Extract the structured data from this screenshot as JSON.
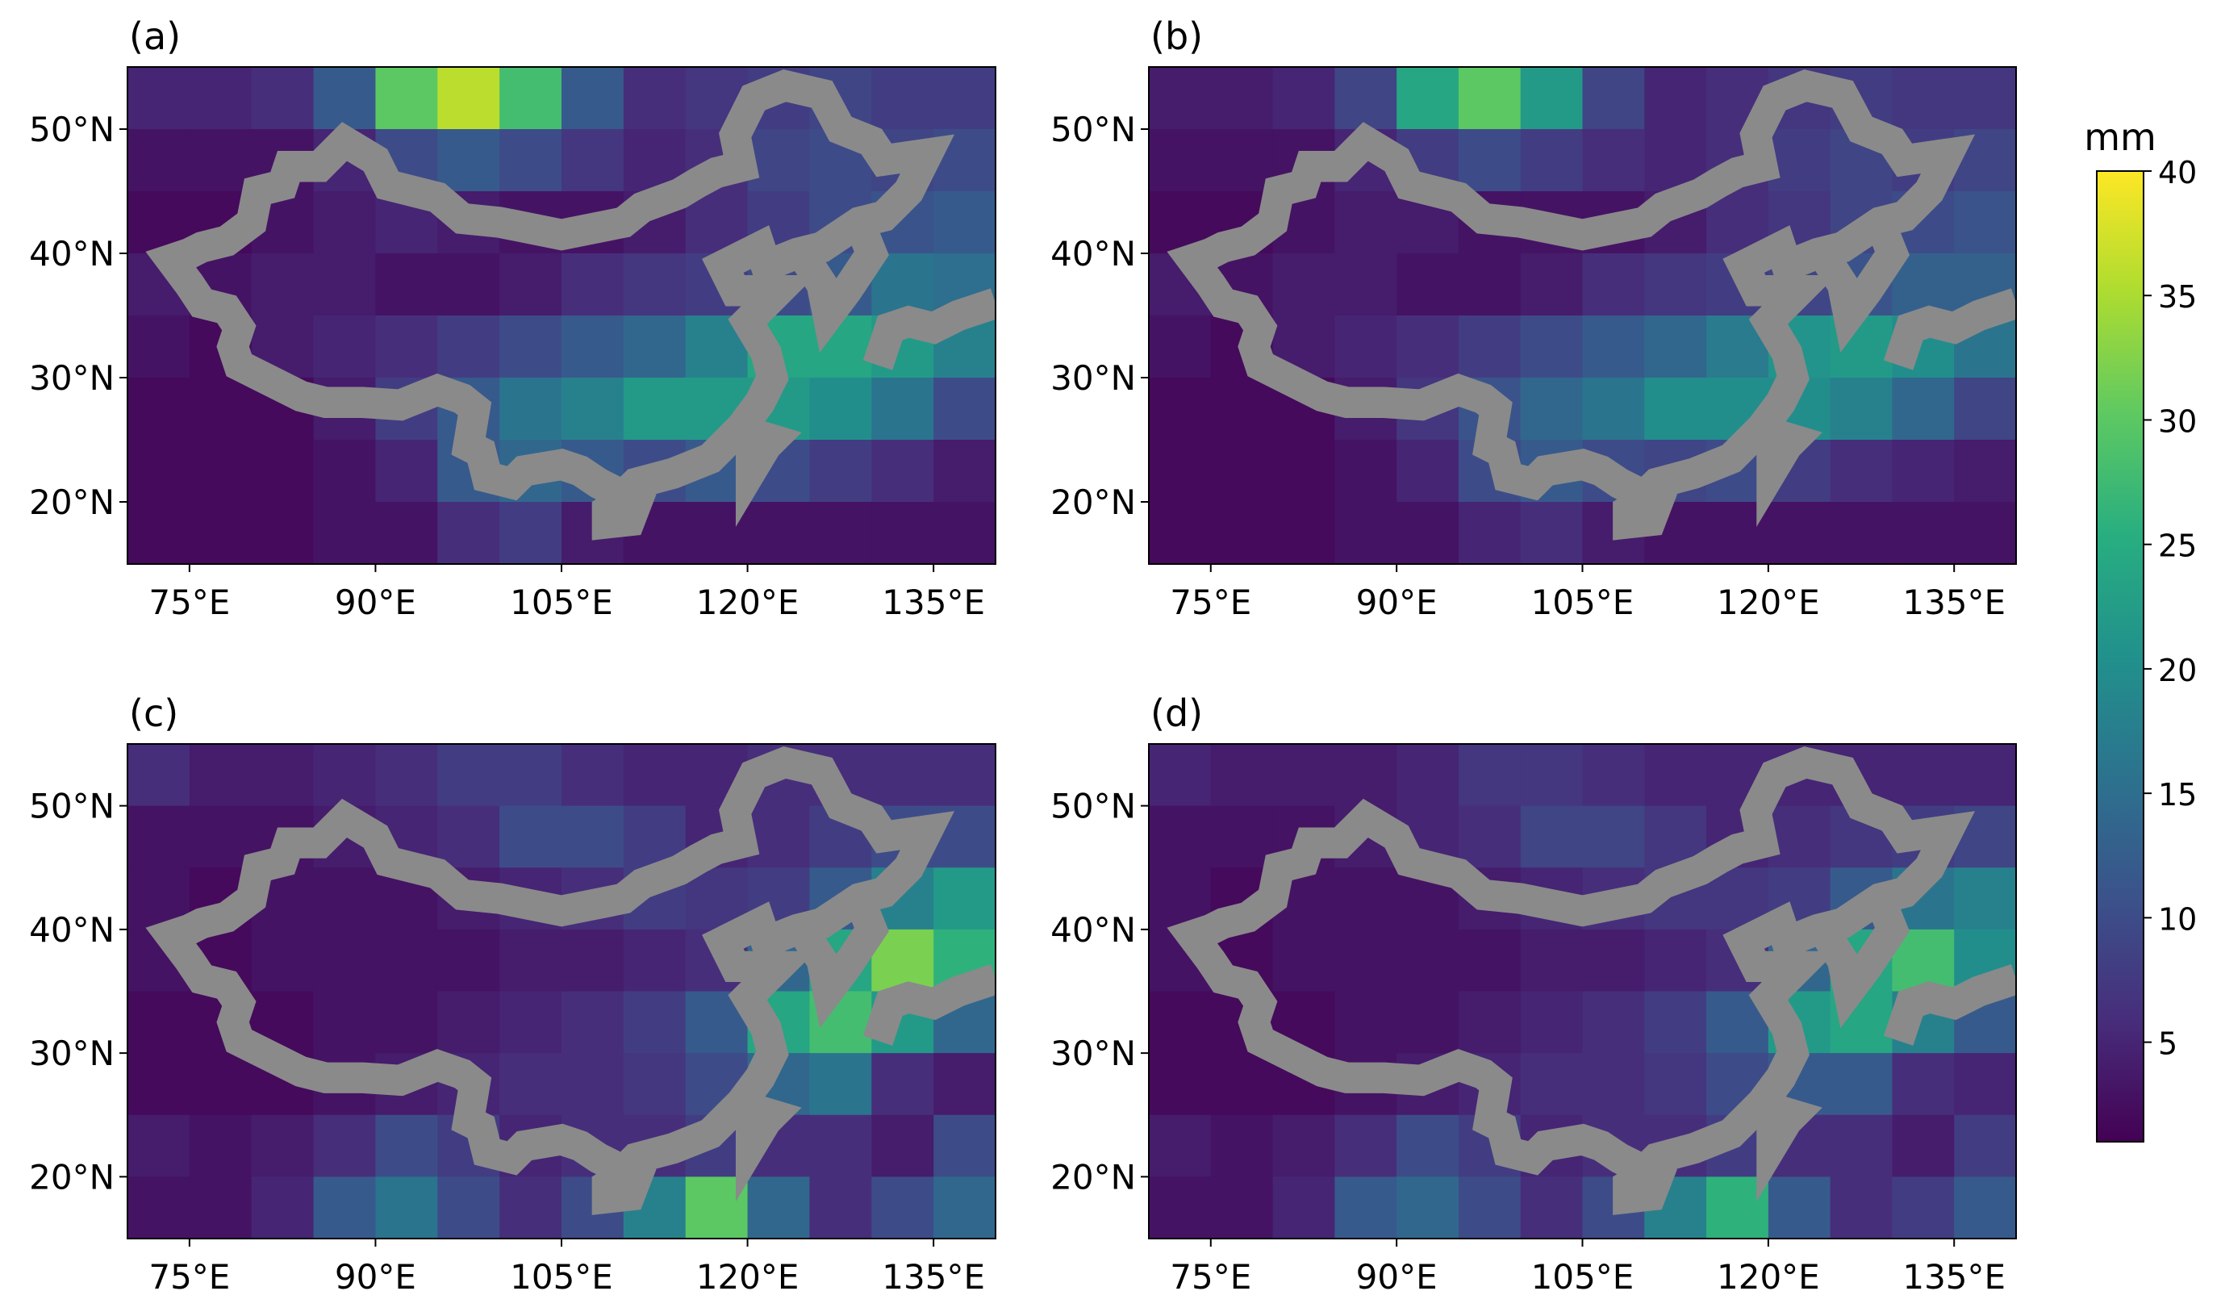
{
  "chart_data": [
    {
      "type": "heatmap",
      "title": "(a)",
      "x": [
        72.5,
        77.5,
        82.5,
        87.5,
        92.5,
        97.5,
        102.5,
        107.5,
        112.5,
        117.5,
        122.5,
        127.5,
        132.5,
        137.5
      ],
      "y": [
        52.5,
        47.5,
        42.5,
        37.5,
        32.5,
        27.5,
        22.5,
        17.5
      ],
      "z": [
        [
          5,
          5,
          6,
          12,
          30,
          36,
          28,
          12,
          6,
          7,
          8,
          9,
          8,
          8
        ],
        [
          3,
          3,
          3,
          5,
          10,
          12,
          10,
          7,
          5,
          6,
          9,
          10,
          9,
          10
        ],
        [
          2,
          2,
          3,
          4,
          5,
          4,
          3,
          3,
          4,
          6,
          8,
          10,
          11,
          12
        ],
        [
          4,
          3,
          4,
          4,
          3,
          3,
          4,
          6,
          7,
          8,
          10,
          12,
          16,
          15
        ],
        [
          3,
          2,
          4,
          5,
          6,
          8,
          10,
          12,
          14,
          18,
          24,
          24,
          22,
          18
        ],
        [
          2,
          2,
          2,
          4,
          8,
          12,
          16,
          18,
          22,
          22,
          22,
          20,
          16,
          10
        ],
        [
          2,
          2,
          2,
          3,
          5,
          12,
          14,
          12,
          10,
          12,
          10,
          8,
          6,
          4
        ],
        [
          2,
          2,
          2,
          3,
          3,
          6,
          8,
          4,
          3,
          3,
          3,
          3,
          3,
          3
        ]
      ],
      "xlim": [
        70,
        140
      ],
      "ylim": [
        15,
        55
      ],
      "xticks": [
        {
          "value": 75,
          "label": "75°E"
        },
        {
          "value": 90,
          "label": "90°E"
        },
        {
          "value": 105,
          "label": "105°E"
        },
        {
          "value": 120,
          "label": "120°E"
        },
        {
          "value": 135,
          "label": "135°E"
        }
      ],
      "yticks": [
        {
          "value": 20,
          "label": "20°N"
        },
        {
          "value": 30,
          "label": "30°N"
        },
        {
          "value": 40,
          "label": "40°N"
        },
        {
          "value": 50,
          "label": "50°N"
        }
      ]
    },
    {
      "type": "heatmap",
      "title": "(b)",
      "x": [
        72.5,
        77.5,
        82.5,
        87.5,
        92.5,
        97.5,
        102.5,
        107.5,
        112.5,
        117.5,
        122.5,
        127.5,
        132.5,
        137.5
      ],
      "y": [
        52.5,
        47.5,
        42.5,
        37.5,
        32.5,
        27.5,
        22.5,
        17.5
      ],
      "z": [
        [
          4,
          4,
          5,
          9,
          24,
          30,
          22,
          9,
          5,
          6,
          7,
          8,
          7,
          7
        ],
        [
          3,
          3,
          3,
          5,
          8,
          10,
          8,
          6,
          5,
          6,
          8,
          9,
          8,
          9
        ],
        [
          2,
          2,
          3,
          4,
          4,
          3,
          3,
          3,
          4,
          6,
          7,
          9,
          10,
          11
        ],
        [
          4,
          3,
          4,
          4,
          3,
          3,
          4,
          6,
          7,
          8,
          9,
          11,
          13,
          13
        ],
        [
          3,
          2,
          4,
          5,
          6,
          8,
          10,
          12,
          14,
          17,
          21,
          22,
          20,
          16
        ],
        [
          2,
          2,
          2,
          4,
          7,
          11,
          14,
          16,
          20,
          20,
          20,
          18,
          14,
          9
        ],
        [
          2,
          2,
          2,
          3,
          5,
          10,
          12,
          10,
          9,
          10,
          8,
          6,
          5,
          4
        ],
        [
          2,
          2,
          2,
          3,
          3,
          5,
          6,
          4,
          3,
          3,
          3,
          3,
          3,
          3
        ]
      ],
      "xlim": [
        70,
        140
      ],
      "ylim": [
        15,
        55
      ],
      "xticks": [
        {
          "value": 75,
          "label": "75°E"
        },
        {
          "value": 90,
          "label": "90°E"
        },
        {
          "value": 105,
          "label": "105°E"
        },
        {
          "value": 120,
          "label": "120°E"
        },
        {
          "value": 135,
          "label": "135°E"
        }
      ],
      "yticks": [
        {
          "value": 20,
          "label": "20°N"
        },
        {
          "value": 30,
          "label": "30°N"
        },
        {
          "value": 40,
          "label": "40°N"
        },
        {
          "value": 50,
          "label": "50°N"
        }
      ]
    },
    {
      "type": "heatmap",
      "title": "(c)",
      "x": [
        72.5,
        77.5,
        82.5,
        87.5,
        92.5,
        97.5,
        102.5,
        107.5,
        112.5,
        117.5,
        122.5,
        127.5,
        132.5,
        137.5
      ],
      "y": [
        52.5,
        47.5,
        42.5,
        37.5,
        32.5,
        27.5,
        22.5,
        17.5
      ],
      "z": [
        [
          6,
          4,
          4,
          5,
          6,
          8,
          8,
          6,
          5,
          5,
          6,
          6,
          6,
          6
        ],
        [
          3,
          3,
          3,
          4,
          5,
          6,
          10,
          10,
          8,
          5,
          6,
          8,
          10,
          10
        ],
        [
          3,
          2,
          3,
          3,
          3,
          4,
          5,
          6,
          8,
          7,
          8,
          12,
          18,
          22
        ],
        [
          3,
          2,
          3,
          3,
          3,
          3,
          4,
          4,
          5,
          6,
          14,
          24,
          32,
          26
        ],
        [
          2,
          2,
          2,
          3,
          3,
          4,
          5,
          6,
          8,
          12,
          24,
          28,
          22,
          14
        ],
        [
          2,
          2,
          2,
          3,
          4,
          5,
          6,
          6,
          7,
          10,
          14,
          16,
          6,
          4
        ],
        [
          4,
          3,
          4,
          6,
          10,
          8,
          5,
          6,
          6,
          8,
          6,
          6,
          4,
          10
        ],
        [
          3,
          3,
          5,
          12,
          16,
          10,
          6,
          10,
          18,
          30,
          14,
          6,
          10,
          14
        ]
      ],
      "xlim": [
        70,
        140
      ],
      "ylim": [
        15,
        55
      ],
      "xticks": [
        {
          "value": 75,
          "label": "75°E"
        },
        {
          "value": 90,
          "label": "90°E"
        },
        {
          "value": 105,
          "label": "105°E"
        },
        {
          "value": 120,
          "label": "120°E"
        },
        {
          "value": 135,
          "label": "135°E"
        }
      ],
      "yticks": [
        {
          "value": 20,
          "label": "20°N"
        },
        {
          "value": 30,
          "label": "30°N"
        },
        {
          "value": 40,
          "label": "40°N"
        },
        {
          "value": 50,
          "label": "50°N"
        }
      ]
    },
    {
      "type": "heatmap",
      "title": "(d)",
      "x": [
        72.5,
        77.5,
        82.5,
        87.5,
        92.5,
        97.5,
        102.5,
        107.5,
        112.5,
        117.5,
        122.5,
        127.5,
        132.5,
        137.5
      ],
      "y": [
        52.5,
        47.5,
        42.5,
        37.5,
        32.5,
        27.5,
        22.5,
        17.5
      ],
      "z": [
        [
          5,
          4,
          4,
          4,
          5,
          7,
          7,
          6,
          5,
          5,
          5,
          5,
          5,
          5
        ],
        [
          3,
          3,
          3,
          4,
          5,
          6,
          9,
          9,
          7,
          5,
          6,
          7,
          8,
          9
        ],
        [
          3,
          2,
          3,
          3,
          3,
          4,
          5,
          6,
          7,
          7,
          8,
          12,
          16,
          18
        ],
        [
          3,
          2,
          3,
          3,
          3,
          3,
          4,
          4,
          5,
          6,
          14,
          24,
          28,
          20
        ],
        [
          2,
          2,
          2,
          3,
          3,
          4,
          5,
          6,
          8,
          12,
          22,
          24,
          18,
          12
        ],
        [
          2,
          2,
          2,
          3,
          4,
          5,
          6,
          6,
          7,
          10,
          12,
          12,
          6,
          5
        ],
        [
          4,
          3,
          4,
          6,
          10,
          8,
          5,
          6,
          6,
          8,
          6,
          6,
          4,
          8
        ],
        [
          3,
          3,
          5,
          12,
          14,
          10,
          6,
          10,
          18,
          26,
          12,
          6,
          8,
          12
        ]
      ],
      "xlim": [
        70,
        140
      ],
      "ylim": [
        15,
        55
      ],
      "xticks": [
        {
          "value": 75,
          "label": "75°E"
        },
        {
          "value": 90,
          "label": "90°E"
        },
        {
          "value": 105,
          "label": "105°E"
        },
        {
          "value": 120,
          "label": "120°E"
        },
        {
          "value": 135,
          "label": "135°E"
        }
      ],
      "yticks": [
        {
          "value": 20,
          "label": "20°N"
        },
        {
          "value": 30,
          "label": "30°N"
        },
        {
          "value": 40,
          "label": "40°N"
        },
        {
          "value": 50,
          "label": "50°N"
        }
      ]
    }
  ],
  "colorbar": {
    "label": "mm",
    "lim": [
      1,
      40
    ],
    "ticks": [
      5,
      10,
      15,
      20,
      25,
      30,
      35,
      40
    ],
    "colormap": "viridis"
  }
}
